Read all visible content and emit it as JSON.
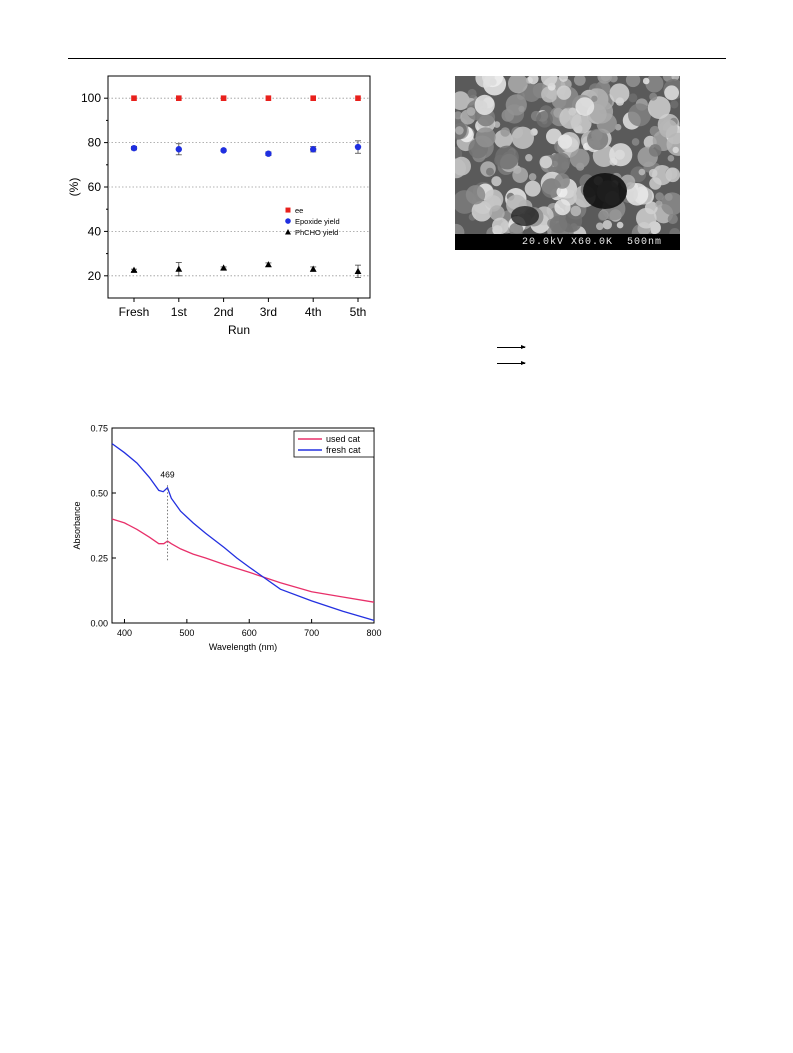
{
  "figures": {
    "recycling": {
      "chart_data": {
        "type": "scatter",
        "categories": [
          "Fresh",
          "1st",
          "2nd",
          "3rd",
          "4th",
          "5th"
        ],
        "xlabel": "Run",
        "ylabel": "(%)",
        "ylim": [
          10,
          110
        ],
        "yticks": [
          20,
          40,
          60,
          80,
          100
        ],
        "grid": "horizontal dotted",
        "legend_position": "right",
        "series": [
          {
            "name": "ee",
            "marker": "square",
            "color": "#e8201c",
            "values": [
              100,
              100,
              100,
              100,
              100,
              100
            ],
            "errors": [
              0,
              0,
              0,
              0,
              0,
              0
            ]
          },
          {
            "name": "Epoxide yield",
            "marker": "circle",
            "color": "#1f2fe0",
            "values": [
              77.5,
              77,
              76.5,
              75,
              77,
              78
            ],
            "errors": [
              0.8,
              2.5,
              0.5,
              0.8,
              1.2,
              2.8
            ]
          },
          {
            "name": "PhCHO yield",
            "marker": "triangle",
            "color": "#000000",
            "values": [
              22.5,
              23,
              23.5,
              25,
              23,
              22
            ],
            "errors": [
              0.5,
              3,
              0.5,
              0.8,
              1,
              2.8
            ]
          }
        ]
      }
    },
    "sem_image": {
      "label": "20.0kV X60.0K  500nm"
    },
    "uvvis": {
      "chart_data": {
        "type": "line",
        "xlabel": "Wavelength (nm)",
        "ylabel": "Absorbance",
        "xlim": [
          380,
          800
        ],
        "ylim": [
          0,
          0.75
        ],
        "xticks": [
          400,
          500,
          600,
          700,
          800
        ],
        "yticks": [
          0.0,
          0.25,
          0.5,
          0.75
        ],
        "ytick_labels": [
          "0.00",
          "0.25",
          "0.50",
          "0.75"
        ],
        "legend_position": "top-right",
        "annotation": {
          "text": "469",
          "x": 469
        },
        "series": [
          {
            "name": "used cat",
            "color": "#e8306a",
            "x": [
              380,
              400,
              420,
              440,
              455,
              463,
              469,
              475,
              490,
              510,
              530,
              560,
              600,
              650,
              700,
              750,
              800
            ],
            "y": [
              0.4,
              0.385,
              0.36,
              0.33,
              0.305,
              0.305,
              0.315,
              0.305,
              0.285,
              0.265,
              0.25,
              0.225,
              0.195,
              0.155,
              0.12,
              0.1,
              0.08
            ]
          },
          {
            "name": "fresh cat",
            "color": "#2330e0",
            "x": [
              380,
              400,
              420,
              440,
              455,
              462,
              469,
              475,
              490,
              510,
              530,
              560,
              580,
              600,
              650,
              700,
              750,
              800
            ],
            "y": [
              0.69,
              0.655,
              0.615,
              0.56,
              0.51,
              0.505,
              0.52,
              0.48,
              0.43,
              0.385,
              0.345,
              0.29,
              0.25,
              0.215,
              0.13,
              0.085,
              0.045,
              0.01
            ]
          }
        ]
      }
    }
  }
}
